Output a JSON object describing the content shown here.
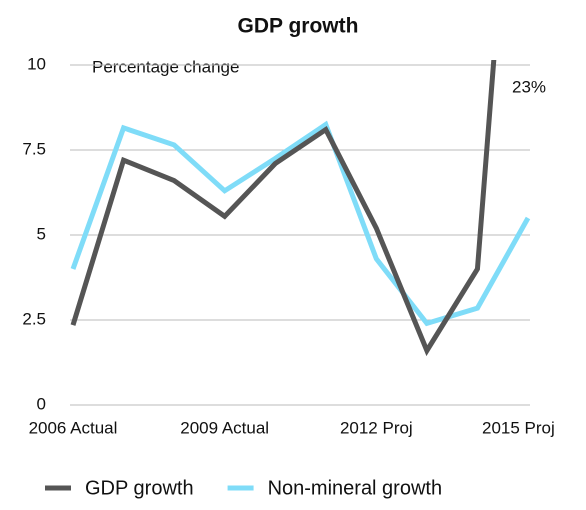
{
  "chart_data": {
    "type": "line",
    "title": "GDP growth",
    "annotation": "Percentage change",
    "categories": [
      "2006 Actual",
      null,
      null,
      "2009 Actual",
      null,
      null,
      "2012 Proj",
      null,
      null,
      "2015 Proj"
    ],
    "series": [
      {
        "name": "GDP growth",
        "color": "#555555",
        "values": [
          2.35,
          7.2,
          6.6,
          5.55,
          7.1,
          8.1,
          5.2,
          1.6,
          4.0,
          23
        ],
        "value_labels": [
          null,
          null,
          null,
          null,
          null,
          null,
          null,
          null,
          null,
          "23%"
        ]
      },
      {
        "name": "Non-mineral growth",
        "color": "#7fdcf8",
        "values": [
          4.0,
          8.15,
          7.65,
          6.3,
          7.25,
          8.25,
          4.3,
          2.4,
          2.85,
          5.5
        ]
      }
    ],
    "ylim": [
      0,
      10
    ],
    "yticks": [
      0,
      2.5,
      5,
      7.5,
      10
    ],
    "grid": true,
    "legend": "bottom"
  }
}
